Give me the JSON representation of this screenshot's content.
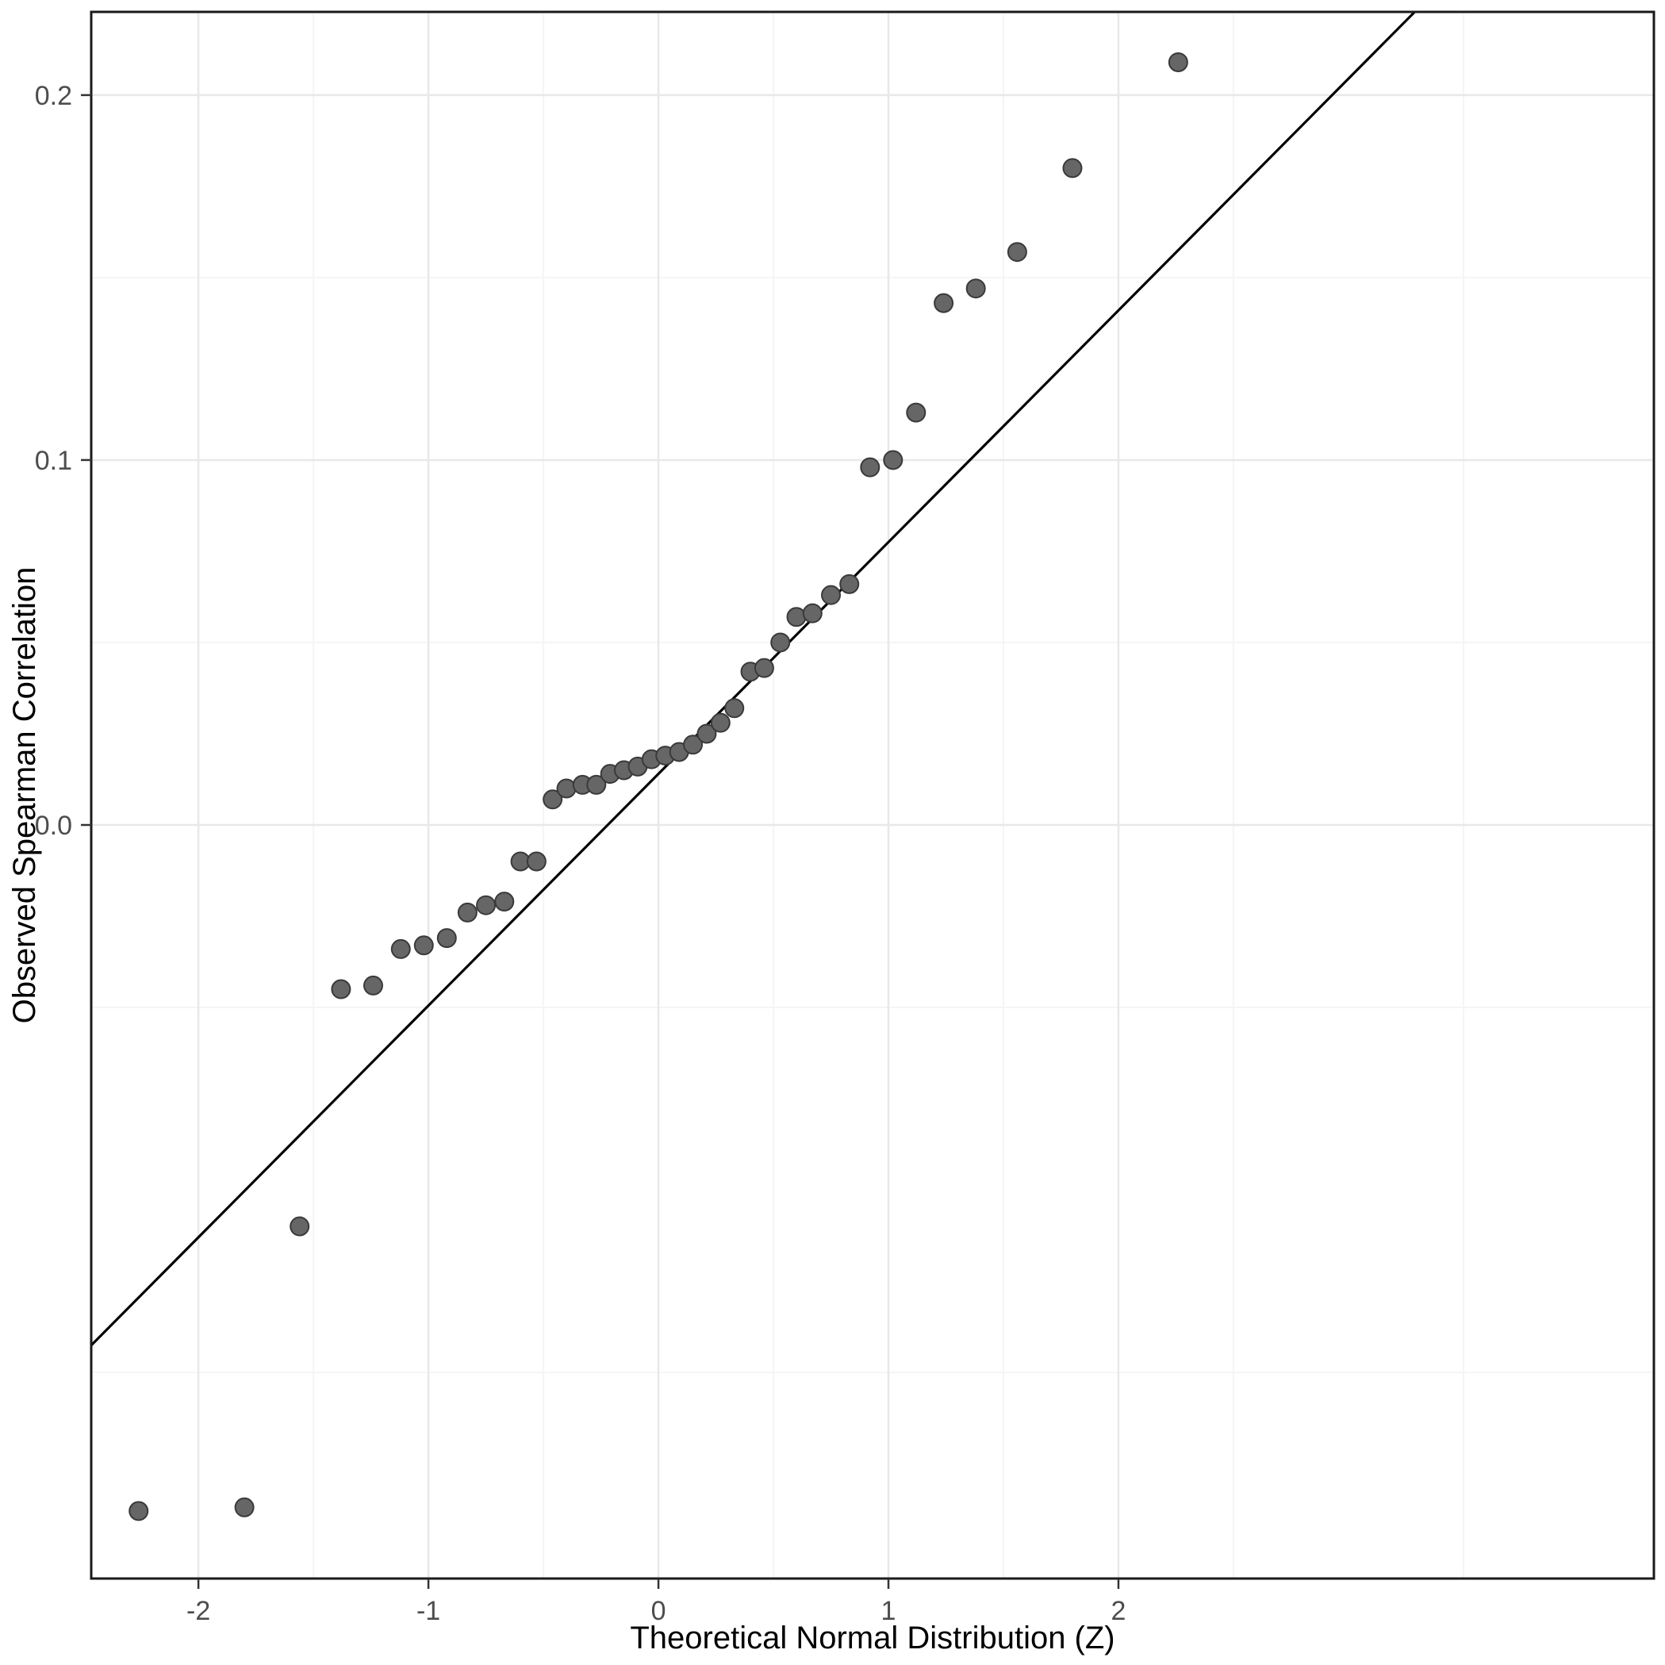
{
  "chart_data": {
    "type": "scatter",
    "subtype": "qq-plot",
    "title": "",
    "xlabel": "Theoretical Normal Distribution (Z)",
    "ylabel": "Observed Spearman Correlation",
    "xlim": [
      -2.466,
      4.328
    ],
    "ylim": [
      -0.2065,
      0.2228
    ],
    "x_ticks": [
      -2,
      -1,
      0,
      1,
      2
    ],
    "x_tick_labels": [
      "-2",
      "-1",
      "0",
      "1",
      "2"
    ],
    "y_ticks": [
      0.0,
      0.1,
      0.2
    ],
    "y_tick_labels": [
      "0.0",
      "0.1",
      "0.2"
    ],
    "x_minor_breaks": [
      -1.5,
      -0.5,
      0.5,
      1.5,
      2.5,
      3.5
    ],
    "y_minor_breaks": [
      -0.15,
      -0.05,
      0.05,
      0.15
    ],
    "grid": true,
    "legend_position": "none",
    "reference_line": {
      "slope": 0.0635,
      "intercept": 0.014
    },
    "points": [
      [
        -2.26,
        -0.188
      ],
      [
        -1.8,
        -0.187
      ],
      [
        -1.56,
        -0.11
      ],
      [
        -1.38,
        -0.045
      ],
      [
        -1.24,
        -0.044
      ],
      [
        -1.12,
        -0.034
      ],
      [
        -1.02,
        -0.033
      ],
      [
        -0.92,
        -0.031
      ],
      [
        -0.83,
        -0.024
      ],
      [
        -0.75,
        -0.022
      ],
      [
        -0.67,
        -0.021
      ],
      [
        -0.6,
        -0.01
      ],
      [
        -0.53,
        -0.01
      ],
      [
        -0.46,
        0.007
      ],
      [
        -0.4,
        0.01
      ],
      [
        -0.33,
        0.011
      ],
      [
        -0.27,
        0.011
      ],
      [
        -0.21,
        0.014
      ],
      [
        -0.15,
        0.015
      ],
      [
        -0.09,
        0.016
      ],
      [
        -0.03,
        0.018
      ],
      [
        0.03,
        0.019
      ],
      [
        0.09,
        0.02
      ],
      [
        0.15,
        0.022
      ],
      [
        0.21,
        0.025
      ],
      [
        0.27,
        0.028
      ],
      [
        0.33,
        0.032
      ],
      [
        0.4,
        0.042
      ],
      [
        0.46,
        0.043
      ],
      [
        0.53,
        0.05
      ],
      [
        0.6,
        0.057
      ],
      [
        0.67,
        0.058
      ],
      [
        0.75,
        0.063
      ],
      [
        0.83,
        0.066
      ],
      [
        0.92,
        0.098
      ],
      [
        1.02,
        0.1
      ],
      [
        1.12,
        0.113
      ],
      [
        1.24,
        0.143
      ],
      [
        1.38,
        0.147
      ],
      [
        1.56,
        0.157
      ],
      [
        1.8,
        0.18
      ],
      [
        2.26,
        0.209
      ]
    ],
    "colors": {
      "point_fill": "#666666",
      "point_stroke": "#3a3a3a",
      "line": "#000000",
      "grid_major": "#e8e8e8",
      "grid_minor": "#f5f5f5",
      "panel_border": "#1a1a1a",
      "tick_text": "#4d4d4d",
      "title_text": "#000000",
      "background": "#ffffff"
    }
  }
}
